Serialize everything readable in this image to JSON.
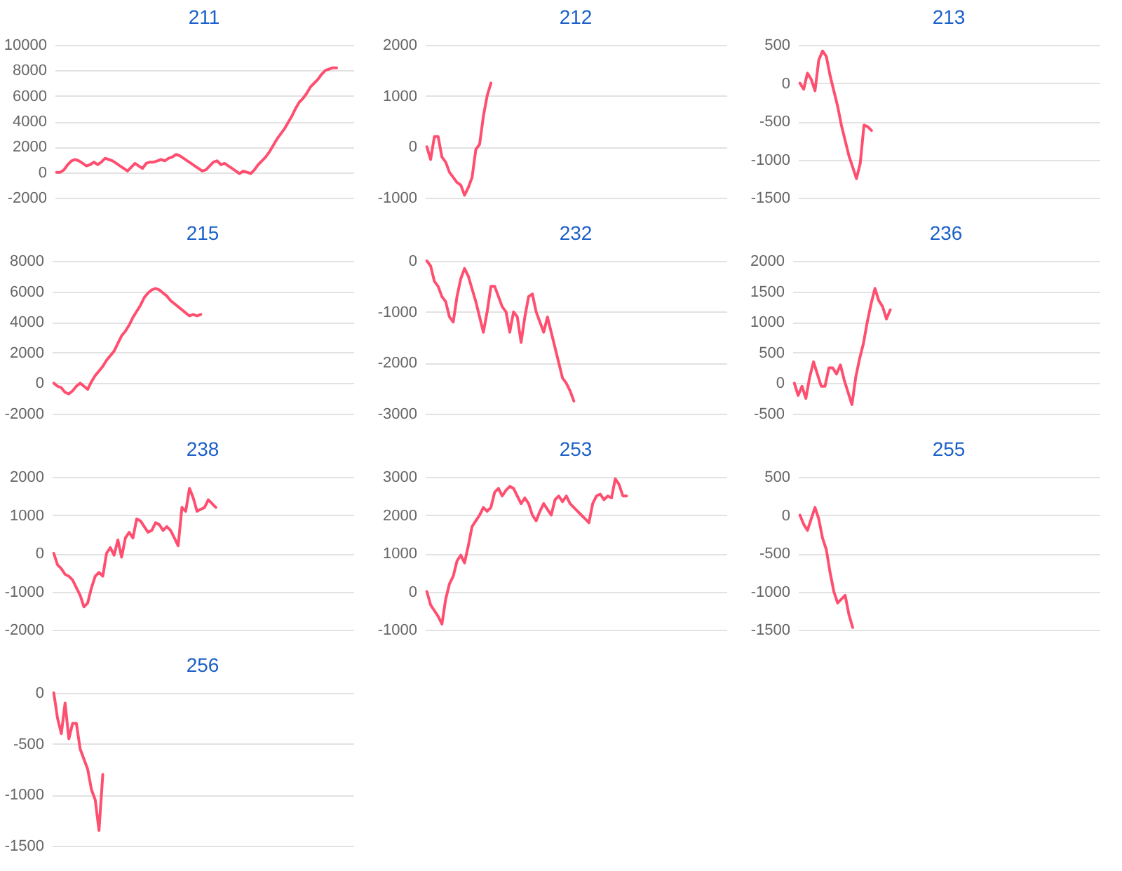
{
  "chart_data": [
    {
      "type": "line",
      "title": "211",
      "grid": "y",
      "tick_labels": "y",
      "ylim": [
        -2000,
        10000
      ],
      "yticks": [
        -2000,
        0,
        2000,
        4000,
        6000,
        8000,
        10000
      ],
      "categories": [
        null,
        null,
        null,
        null,
        null,
        null,
        null,
        null,
        null,
        null,
        null,
        null,
        null,
        null,
        null,
        null,
        null,
        null,
        null,
        null,
        null,
        null,
        null,
        null,
        null,
        null,
        null,
        null,
        null,
        null,
        null,
        null,
        null,
        null,
        null,
        null,
        null,
        null,
        null,
        null,
        null,
        null,
        null,
        null,
        null,
        null,
        null,
        null,
        null,
        null,
        null,
        null,
        null,
        null,
        null,
        null,
        null,
        null,
        null,
        null,
        null,
        null,
        null,
        null,
        null,
        null,
        null,
        null,
        null,
        null,
        null,
        null,
        null,
        null,
        null,
        null,
        null,
        null,
        null,
        null
      ],
      "series": [
        {
          "color": "#ff4f70",
          "values": [
            0,
            0,
            200,
            600,
            900,
            1000,
            900,
            700,
            500,
            600,
            800,
            600,
            800,
            1100,
            1000,
            900,
            700,
            500,
            300,
            100,
            400,
            700,
            500,
            300,
            700,
            800,
            800,
            900,
            1000,
            900,
            1100,
            1200,
            1400,
            1300,
            1100,
            900,
            700,
            500,
            300,
            100,
            200,
            500,
            800,
            900,
            600,
            700,
            500,
            300,
            100,
            -100,
            100,
            0,
            -100,
            200,
            600,
            900,
            1200,
            1600,
            2100,
            2600,
            3000,
            3400,
            3900,
            4400,
            5000,
            5500,
            5800,
            6200,
            6700,
            7000,
            7300,
            7700,
            8000,
            8100,
            8200,
            8200,
            null,
            null,
            null,
            null
          ]
        }
      ]
    },
    {
      "type": "line",
      "title": "212",
      "grid": "y",
      "tick_labels": "y",
      "ylim": [
        -1000,
        2000
      ],
      "yticks": [
        -1000,
        0,
        1000,
        2000
      ],
      "categories": [
        null,
        null,
        null,
        null,
        null,
        null,
        null,
        null,
        null,
        null,
        null,
        null,
        null,
        null,
        null,
        null,
        null,
        null,
        null,
        null,
        null,
        null,
        null,
        null,
        null,
        null,
        null,
        null,
        null,
        null,
        null,
        null,
        null,
        null,
        null,
        null,
        null,
        null,
        null,
        null,
        null,
        null,
        null,
        null,
        null,
        null,
        null,
        null,
        null,
        null,
        null,
        null,
        null,
        null,
        null,
        null,
        null,
        null,
        null,
        null,
        null,
        null,
        null,
        null,
        null,
        null,
        null,
        null,
        null,
        null,
        null,
        null,
        null,
        null,
        null,
        null,
        null,
        null,
        null,
        null
      ],
      "series": [
        {
          "color": "#ff4f70",
          "values": [
            0,
            -250,
            200,
            200,
            -200,
            -300,
            -500,
            -600,
            -700,
            -750,
            -950,
            -800,
            -600,
            -50,
            50,
            600,
            1000,
            1250,
            null,
            null,
            null,
            null,
            null,
            null,
            null,
            null,
            null,
            null,
            null,
            null,
            null,
            null,
            null,
            null,
            null,
            null,
            null,
            null,
            null,
            null,
            null,
            null,
            null,
            null,
            null,
            null,
            null,
            null,
            null,
            null,
            null,
            null,
            null,
            null,
            null,
            null,
            null,
            null,
            null,
            null,
            null,
            null,
            null,
            null,
            null,
            null,
            null,
            null,
            null,
            null,
            null,
            null,
            null,
            null,
            null,
            null,
            null,
            null,
            null,
            null
          ]
        }
      ]
    },
    {
      "type": "line",
      "title": "213",
      "grid": "y",
      "tick_labels": "y",
      "ylim": [
        -1500,
        500
      ],
      "yticks": [
        -1500,
        -1000,
        -500,
        0,
        500
      ],
      "categories": [
        null,
        null,
        null,
        null,
        null,
        null,
        null,
        null,
        null,
        null,
        null,
        null,
        null,
        null,
        null,
        null,
        null,
        null,
        null,
        null,
        null,
        null,
        null,
        null,
        null,
        null,
        null,
        null,
        null,
        null,
        null,
        null,
        null,
        null,
        null,
        null,
        null,
        null,
        null,
        null,
        null,
        null,
        null,
        null,
        null,
        null,
        null,
        null,
        null,
        null,
        null,
        null,
        null,
        null,
        null,
        null,
        null,
        null,
        null,
        null,
        null,
        null,
        null,
        null,
        null,
        null,
        null,
        null,
        null,
        null,
        null,
        null,
        null,
        null,
        null,
        null,
        null,
        null,
        null,
        null
      ],
      "series": [
        {
          "color": "#ff4f70",
          "values": [
            0,
            -80,
            130,
            50,
            -100,
            300,
            420,
            350,
            100,
            -100,
            -300,
            -550,
            -750,
            -950,
            -1100,
            -1250,
            -1050,
            -550,
            -570,
            -620,
            null,
            null,
            null,
            null,
            null,
            null,
            null,
            null,
            null,
            null,
            null,
            null,
            null,
            null,
            null,
            null,
            null,
            null,
            null,
            null,
            null,
            null,
            null,
            null,
            null,
            null,
            null,
            null,
            null,
            null,
            null,
            null,
            null,
            null,
            null,
            null,
            null,
            null,
            null,
            null,
            null,
            null,
            null,
            null,
            null,
            null,
            null,
            null,
            null,
            null,
            null,
            null,
            null,
            null,
            null,
            null,
            null,
            null,
            null,
            null
          ]
        }
      ]
    },
    {
      "type": "line",
      "title": "215",
      "grid": "y",
      "tick_labels": "y",
      "ylim": [
        -2000,
        8000
      ],
      "yticks": [
        -2000,
        0,
        2000,
        4000,
        6000,
        8000
      ],
      "categories": [
        null,
        null,
        null,
        null,
        null,
        null,
        null,
        null,
        null,
        null,
        null,
        null,
        null,
        null,
        null,
        null,
        null,
        null,
        null,
        null,
        null,
        null,
        null,
        null,
        null,
        null,
        null,
        null,
        null,
        null,
        null,
        null,
        null,
        null,
        null,
        null,
        null,
        null,
        null,
        null,
        null,
        null,
        null,
        null,
        null,
        null,
        null,
        null,
        null,
        null,
        null,
        null,
        null,
        null,
        null,
        null,
        null,
        null,
        null,
        null,
        null,
        null,
        null,
        null,
        null,
        null,
        null,
        null,
        null,
        null,
        null,
        null,
        null,
        null,
        null,
        null,
        null,
        null,
        null,
        null
      ],
      "series": [
        {
          "color": "#ff4f70",
          "values": [
            0,
            -200,
            -300,
            -600,
            -700,
            -500,
            -200,
            0,
            -200,
            -400,
            100,
            500,
            800,
            1100,
            1500,
            1800,
            2100,
            2600,
            3100,
            3400,
            3800,
            4300,
            4700,
            5100,
            5600,
            5900,
            6100,
            6200,
            6100,
            5900,
            5700,
            5400,
            5200,
            5000,
            4800,
            4600,
            4400,
            4500,
            4400,
            4500,
            null,
            null,
            null,
            null,
            null,
            null,
            null,
            null,
            null,
            null,
            null,
            null,
            null,
            null,
            null,
            null,
            null,
            null,
            null,
            null,
            null,
            null,
            null,
            null,
            null,
            null,
            null,
            null,
            null,
            null,
            null,
            null,
            null,
            null,
            null,
            null,
            null,
            null,
            null,
            null
          ]
        }
      ]
    },
    {
      "type": "line",
      "title": "232",
      "grid": "y",
      "tick_labels": "y",
      "ylim": [
        -3000,
        0
      ],
      "yticks": [
        -3000,
        -2000,
        -1000,
        0
      ],
      "categories": [
        null,
        null,
        null,
        null,
        null,
        null,
        null,
        null,
        null,
        null,
        null,
        null,
        null,
        null,
        null,
        null,
        null,
        null,
        null,
        null,
        null,
        null,
        null,
        null,
        null,
        null,
        null,
        null,
        null,
        null,
        null,
        null,
        null,
        null,
        null,
        null,
        null,
        null,
        null,
        null,
        null,
        null,
        null,
        null,
        null,
        null,
        null,
        null,
        null,
        null,
        null,
        null,
        null,
        null,
        null,
        null,
        null,
        null,
        null,
        null,
        null,
        null,
        null,
        null,
        null,
        null,
        null,
        null,
        null,
        null,
        null,
        null,
        null,
        null,
        null,
        null,
        null,
        null,
        null,
        null
      ],
      "series": [
        {
          "color": "#ff4f70",
          "values": [
            0,
            -100,
            -400,
            -500,
            -700,
            -800,
            -1100,
            -1200,
            -700,
            -350,
            -150,
            -300,
            -550,
            -800,
            -1100,
            -1400,
            -1000,
            -500,
            -500,
            -700,
            -900,
            -1000,
            -1400,
            -1000,
            -1100,
            -1600,
            -1100,
            -700,
            -650,
            -1000,
            -1200,
            -1400,
            -1100,
            -1400,
            -1700,
            -2000,
            -2300,
            -2400,
            -2550,
            -2750,
            null,
            null,
            null,
            null,
            null,
            null,
            null,
            null,
            null,
            null,
            null,
            null,
            null,
            null,
            null,
            null,
            null,
            null,
            null,
            null,
            null,
            null,
            null,
            null,
            null,
            null,
            null,
            null,
            null,
            null,
            null,
            null,
            null,
            null,
            null,
            null,
            null,
            null,
            null,
            null
          ]
        }
      ]
    },
    {
      "type": "line",
      "title": "236",
      "grid": "y",
      "tick_labels": "y",
      "ylim": [
        -500,
        2000
      ],
      "yticks": [
        -500,
        0,
        500,
        1000,
        1500,
        2000
      ],
      "categories": [
        null,
        null,
        null,
        null,
        null,
        null,
        null,
        null,
        null,
        null,
        null,
        null,
        null,
        null,
        null,
        null,
        null,
        null,
        null,
        null,
        null,
        null,
        null,
        null,
        null,
        null,
        null,
        null,
        null,
        null,
        null,
        null,
        null,
        null,
        null,
        null,
        null,
        null,
        null,
        null,
        null,
        null,
        null,
        null,
        null,
        null,
        null,
        null,
        null,
        null,
        null,
        null,
        null,
        null,
        null,
        null,
        null,
        null,
        null,
        null,
        null,
        null,
        null,
        null,
        null,
        null,
        null,
        null,
        null,
        null,
        null,
        null,
        null,
        null,
        null,
        null,
        null,
        null,
        null,
        null
      ],
      "series": [
        {
          "color": "#ff4f70",
          "values": [
            0,
            -200,
            -50,
            -250,
            100,
            350,
            150,
            -50,
            -50,
            250,
            250,
            150,
            300,
            50,
            -150,
            -350,
            100,
            400,
            650,
            1000,
            1300,
            1550,
            1350,
            1250,
            1050,
            1200,
            null,
            null,
            null,
            null,
            null,
            null,
            null,
            null,
            null,
            null,
            null,
            null,
            null,
            null,
            null,
            null,
            null,
            null,
            null,
            null,
            null,
            null,
            null,
            null,
            null,
            null,
            null,
            null,
            null,
            null,
            null,
            null,
            null,
            null,
            null,
            null,
            null,
            null,
            null,
            null,
            null,
            null,
            null,
            null,
            null,
            null,
            null,
            null,
            null,
            null,
            null,
            null,
            null,
            null
          ]
        }
      ]
    },
    {
      "type": "line",
      "title": "238",
      "grid": "y",
      "tick_labels": "y",
      "ylim": [
        -2000,
        2000
      ],
      "yticks": [
        -2000,
        -1000,
        0,
        1000,
        2000
      ],
      "categories": [
        null,
        null,
        null,
        null,
        null,
        null,
        null,
        null,
        null,
        null,
        null,
        null,
        null,
        null,
        null,
        null,
        null,
        null,
        null,
        null,
        null,
        null,
        null,
        null,
        null,
        null,
        null,
        null,
        null,
        null,
        null,
        null,
        null,
        null,
        null,
        null,
        null,
        null,
        null,
        null,
        null,
        null,
        null,
        null,
        null,
        null,
        null,
        null,
        null,
        null,
        null,
        null,
        null,
        null,
        null,
        null,
        null,
        null,
        null,
        null,
        null,
        null,
        null,
        null,
        null,
        null,
        null,
        null,
        null,
        null,
        null,
        null,
        null,
        null,
        null,
        null,
        null,
        null,
        null,
        null
      ],
      "series": [
        {
          "color": "#ff4f70",
          "values": [
            0,
            -300,
            -400,
            -550,
            -600,
            -700,
            -900,
            -1100,
            -1400,
            -1300,
            -900,
            -600,
            -500,
            -600,
            0,
            150,
            -50,
            350,
            -100,
            400,
            550,
            400,
            900,
            850,
            700,
            550,
            600,
            800,
            750,
            600,
            700,
            600,
            400,
            200,
            1200,
            1100,
            1700,
            1450,
            1100,
            1150,
            1200,
            1400,
            1300,
            1200,
            null,
            null,
            null,
            null,
            null,
            null,
            null,
            null,
            null,
            null,
            null,
            null,
            null,
            null,
            null,
            null,
            null,
            null,
            null,
            null,
            null,
            null,
            null,
            null,
            null,
            null,
            null,
            null,
            null,
            null,
            null,
            null,
            null,
            null,
            null,
            null
          ]
        }
      ]
    },
    {
      "type": "line",
      "title": "253",
      "grid": "y",
      "tick_labels": "y",
      "ylim": [
        -1000,
        3000
      ],
      "yticks": [
        -1000,
        0,
        1000,
        2000,
        3000
      ],
      "categories": [
        null,
        null,
        null,
        null,
        null,
        null,
        null,
        null,
        null,
        null,
        null,
        null,
        null,
        null,
        null,
        null,
        null,
        null,
        null,
        null,
        null,
        null,
        null,
        null,
        null,
        null,
        null,
        null,
        null,
        null,
        null,
        null,
        null,
        null,
        null,
        null,
        null,
        null,
        null,
        null,
        null,
        null,
        null,
        null,
        null,
        null,
        null,
        null,
        null,
        null,
        null,
        null,
        null,
        null,
        null,
        null,
        null,
        null,
        null,
        null,
        null,
        null,
        null,
        null,
        null,
        null,
        null,
        null,
        null,
        null,
        null,
        null,
        null,
        null,
        null,
        null,
        null,
        null,
        null,
        null
      ],
      "series": [
        {
          "color": "#ff4f70",
          "values": [
            0,
            -350,
            -500,
            -650,
            -850,
            -200,
            200,
            400,
            800,
            950,
            750,
            1200,
            1700,
            1850,
            2000,
            2200,
            2100,
            2200,
            2600,
            2700,
            2500,
            2650,
            2750,
            2700,
            2500,
            2300,
            2450,
            2300,
            2000,
            1850,
            2100,
            2300,
            2150,
            2000,
            2400,
            2500,
            2350,
            2500,
            2300,
            2200,
            2100,
            2000,
            1900,
            1800,
            2300,
            2500,
            2550,
            2400,
            2500,
            2450,
            2950,
            2800,
            2500,
            2500,
            null,
            null,
            null,
            null,
            null,
            null,
            null,
            null,
            null,
            null,
            null,
            null,
            null,
            null,
            null,
            null,
            null,
            null,
            null,
            null,
            null,
            null,
            null,
            null,
            null,
            null
          ]
        }
      ]
    },
    {
      "type": "line",
      "title": "255",
      "grid": "y",
      "tick_labels": "y",
      "ylim": [
        -1500,
        500
      ],
      "yticks": [
        -1500,
        -1000,
        -500,
        0,
        500
      ],
      "categories": [
        null,
        null,
        null,
        null,
        null,
        null,
        null,
        null,
        null,
        null,
        null,
        null,
        null,
        null,
        null,
        null,
        null,
        null,
        null,
        null,
        null,
        null,
        null,
        null,
        null,
        null,
        null,
        null,
        null,
        null,
        null,
        null,
        null,
        null,
        null,
        null,
        null,
        null,
        null,
        null,
        null,
        null,
        null,
        null,
        null,
        null,
        null,
        null,
        null,
        null,
        null,
        null,
        null,
        null,
        null,
        null,
        null,
        null,
        null,
        null,
        null,
        null,
        null,
        null,
        null,
        null,
        null,
        null,
        null,
        null,
        null,
        null,
        null,
        null,
        null,
        null,
        null,
        null,
        null,
        null
      ],
      "series": [
        {
          "color": "#ff4f70",
          "values": [
            0,
            -120,
            -200,
            -50,
            100,
            -50,
            -300,
            -450,
            -750,
            -1000,
            -1150,
            -1100,
            -1050,
            -1300,
            -1470,
            null,
            null,
            null,
            null,
            null,
            null,
            null,
            null,
            null,
            null,
            null,
            null,
            null,
            null,
            null,
            null,
            null,
            null,
            null,
            null,
            null,
            null,
            null,
            null,
            null,
            null,
            null,
            null,
            null,
            null,
            null,
            null,
            null,
            null,
            null,
            null,
            null,
            null,
            null,
            null,
            null,
            null,
            null,
            null,
            null,
            null,
            null,
            null,
            null,
            null,
            null,
            null,
            null,
            null,
            null,
            null,
            null,
            null,
            null,
            null,
            null,
            null,
            null,
            null,
            null
          ]
        }
      ]
    },
    {
      "type": "line",
      "title": "256",
      "grid": "y",
      "tick_labels": "y",
      "ylim": [
        -1500,
        0
      ],
      "yticks": [
        -1500,
        -1000,
        -500,
        0
      ],
      "categories": [
        null,
        null,
        null,
        null,
        null,
        null,
        null,
        null,
        null,
        null,
        null,
        null,
        null,
        null,
        null,
        null,
        null,
        null,
        null,
        null,
        null,
        null,
        null,
        null,
        null,
        null,
        null,
        null,
        null,
        null,
        null,
        null,
        null,
        null,
        null,
        null,
        null,
        null,
        null,
        null,
        null,
        null,
        null,
        null,
        null,
        null,
        null,
        null,
        null,
        null,
        null,
        null,
        null,
        null,
        null,
        null,
        null,
        null,
        null,
        null,
        null,
        null,
        null,
        null,
        null,
        null,
        null,
        null,
        null,
        null,
        null,
        null,
        null,
        null,
        null,
        null,
        null,
        null,
        null,
        null
      ],
      "series": [
        {
          "color": "#ff4f70",
          "values": [
            0,
            -250,
            -400,
            -100,
            -450,
            -300,
            -300,
            -550,
            -650,
            -750,
            -950,
            -1050,
            -1350,
            -800,
            null,
            null,
            null,
            null,
            null,
            null,
            null,
            null,
            null,
            null,
            null,
            null,
            null,
            null,
            null,
            null,
            null,
            null,
            null,
            null,
            null,
            null,
            null,
            null,
            null,
            null,
            null,
            null,
            null,
            null,
            null,
            null,
            null,
            null,
            null,
            null,
            null,
            null,
            null,
            null,
            null,
            null,
            null,
            null,
            null,
            null,
            null,
            null,
            null,
            null,
            null,
            null,
            null,
            null,
            null,
            null,
            null,
            null,
            null,
            null,
            null,
            null,
            null,
            null,
            null,
            null
          ]
        }
      ]
    }
  ]
}
